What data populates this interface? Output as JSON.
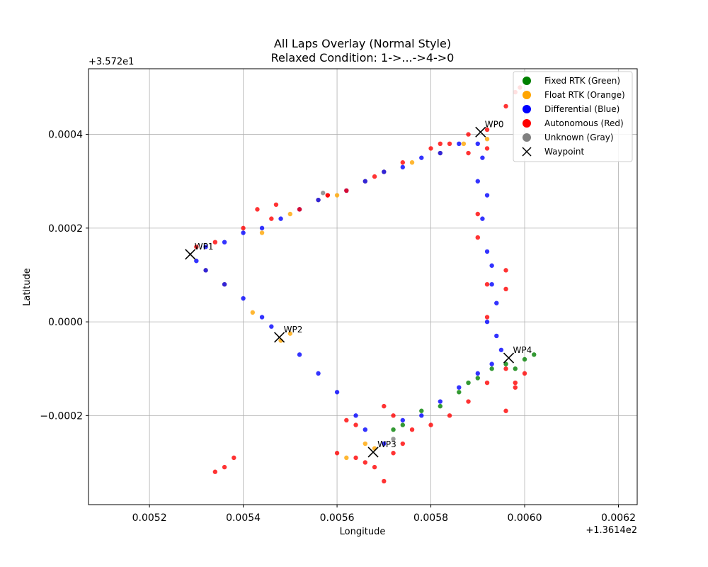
{
  "chart_data": {
    "type": "scatter",
    "title_line1": "All Laps Overlay (Normal Style)",
    "title_line2": "Relaxed Condition: 1->...->4->0",
    "xlabel": "Longitude",
    "ylabel": "Latitude",
    "x_offset_text": "+1.3614e2",
    "y_offset_text": "+3.572e1",
    "xlim": [
      0.00507,
      0.00624
    ],
    "ylim": [
      -0.00039,
      0.00054
    ],
    "x_ticks": [
      0.0052,
      0.0054,
      0.0056,
      0.0058,
      0.006,
      0.0062
    ],
    "x_tick_labels": [
      "0.0052",
      "0.0054",
      "0.0056",
      "0.0058",
      "0.0060",
      "0.0062"
    ],
    "y_ticks": [
      -0.0002,
      0.0,
      0.0002,
      0.0004
    ],
    "y_tick_labels": [
      "−0.0002",
      "0.0000",
      "0.0002",
      "0.0004"
    ],
    "grid": true,
    "legend_position": "upper right",
    "legend": [
      {
        "label": "Fixed RTK (Green)",
        "color": "#008000",
        "marker": "circle"
      },
      {
        "label": "Float RTK (Orange)",
        "color": "#FFA500",
        "marker": "circle"
      },
      {
        "label": "Differential (Blue)",
        "color": "#0000FF",
        "marker": "circle"
      },
      {
        "label": "Autonomous (Red)",
        "color": "#FF0000",
        "marker": "circle"
      },
      {
        "label": "Unknown (Gray)",
        "color": "#808080",
        "marker": "circle"
      },
      {
        "label": "Waypoint",
        "color": "#000000",
        "marker": "x"
      }
    ],
    "waypoints": [
      {
        "label": "WP0",
        "x": 0.005906,
        "y": 0.000405
      },
      {
        "label": "WP1",
        "x": 0.005287,
        "y": 0.000144
      },
      {
        "label": "WP2",
        "x": 0.005477,
        "y": -3.3e-05
      },
      {
        "label": "WP3",
        "x": 0.005677,
        "y": -0.000278
      },
      {
        "label": "WP4",
        "x": 0.005966,
        "y": -7.7e-05
      }
    ],
    "series": [
      {
        "name": "Fixed RTK (Green)",
        "color": "#008000",
        "points": [
          [
            0.00574,
            -0.00022
          ],
          [
            0.00578,
            -0.00019
          ],
          [
            0.00582,
            -0.00018
          ],
          [
            0.00586,
            -0.00015
          ],
          [
            0.0059,
            -0.00012
          ],
          [
            0.00593,
            -0.0001
          ],
          [
            0.00596,
            -9e-05
          ],
          [
            0.00598,
            -0.0001
          ],
          [
            0.006,
            -8e-05
          ],
          [
            0.00602,
            -7e-05
          ],
          [
            0.00572,
            -0.00023
          ],
          [
            0.00588,
            -0.00013
          ]
        ]
      },
      {
        "name": "Float RTK (Orange)",
        "color": "#FFA500",
        "points": [
          [
            0.00548,
            -4e-05
          ],
          [
            0.0055,
            -2.5e-05
          ],
          [
            0.00542,
            2e-05
          ],
          [
            0.00536,
            8e-05
          ],
          [
            0.00532,
            0.00011
          ],
          [
            0.00544,
            0.00019
          ],
          [
            0.0055,
            0.00023
          ],
          [
            0.00556,
            0.00026
          ],
          [
            0.0056,
            0.00027
          ],
          [
            0.00566,
            0.0003
          ],
          [
            0.0057,
            0.00032
          ],
          [
            0.00576,
            0.00034
          ],
          [
            0.00582,
            0.00036
          ],
          [
            0.00587,
            0.00038
          ],
          [
            0.00568,
            -0.00027
          ],
          [
            0.00562,
            -0.00029
          ],
          [
            0.00566,
            -0.00026
          ],
          [
            0.00592,
            0.00039
          ]
        ]
      },
      {
        "name": "Differential (Blue)",
        "color": "#0000FF",
        "points": [
          [
            0.0053,
            0.00013
          ],
          [
            0.00532,
            0.00011
          ],
          [
            0.00536,
            8e-05
          ],
          [
            0.0054,
            5e-05
          ],
          [
            0.00544,
            1e-05
          ],
          [
            0.00546,
            -1e-05
          ],
          [
            0.00552,
            -7e-05
          ],
          [
            0.00556,
            -0.00011
          ],
          [
            0.0056,
            -0.00015
          ],
          [
            0.00564,
            -0.0002
          ],
          [
            0.00566,
            -0.00023
          ],
          [
            0.0057,
            -0.00026
          ],
          [
            0.00574,
            -0.00021
          ],
          [
            0.00578,
            -0.0002
          ],
          [
            0.00582,
            -0.00017
          ],
          [
            0.00586,
            -0.00014
          ],
          [
            0.0059,
            -0.00011
          ],
          [
            0.00593,
            -9e-05
          ],
          [
            0.00592,
            0.0
          ],
          [
            0.00593,
            8e-05
          ],
          [
            0.00592,
            0.00015
          ],
          [
            0.00591,
            0.00022
          ],
          [
            0.0059,
            0.0003
          ],
          [
            0.0059,
            0.00038
          ],
          [
            0.00586,
            0.00038
          ],
          [
            0.00582,
            0.00036
          ],
          [
            0.00578,
            0.00035
          ],
          [
            0.00574,
            0.00033
          ],
          [
            0.0057,
            0.00032
          ],
          [
            0.00566,
            0.0003
          ],
          [
            0.00562,
            0.00028
          ],
          [
            0.00556,
            0.00026
          ],
          [
            0.00552,
            0.00024
          ],
          [
            0.00548,
            0.00022
          ],
          [
            0.00544,
            0.0002
          ],
          [
            0.0054,
            0.00019
          ],
          [
            0.00536,
            0.00017
          ],
          [
            0.00532,
            0.00016
          ],
          [
            0.00594,
            -3e-05
          ],
          [
            0.00595,
            -6e-05
          ],
          [
            0.00591,
            0.00035
          ],
          [
            0.00592,
            0.00027
          ],
          [
            0.00593,
            0.00012
          ],
          [
            0.00594,
            4e-05
          ]
        ]
      },
      {
        "name": "Autonomous (Red)",
        "color": "#FF0000",
        "points": [
          [
            0.00534,
            -0.00032
          ],
          [
            0.00536,
            -0.00031
          ],
          [
            0.00538,
            -0.00029
          ],
          [
            0.0053,
            0.00016
          ],
          [
            0.00534,
            0.00017
          ],
          [
            0.0054,
            0.0002
          ],
          [
            0.00546,
            0.00022
          ],
          [
            0.00552,
            0.00024
          ],
          [
            0.00558,
            0.00027
          ],
          [
            0.00562,
            0.00028
          ],
          [
            0.00568,
            0.00031
          ],
          [
            0.00574,
            0.00034
          ],
          [
            0.0058,
            0.00037
          ],
          [
            0.00584,
            0.00038
          ],
          [
            0.00588,
            0.0004
          ],
          [
            0.00592,
            0.00041
          ],
          [
            0.00596,
            0.00046
          ],
          [
            0.00598,
            0.00049
          ],
          [
            0.00599,
            0.0005
          ],
          [
            0.00592,
            0.00037
          ],
          [
            0.0059,
            0.00023
          ],
          [
            0.0059,
            0.00018
          ],
          [
            0.00592,
            8e-05
          ],
          [
            0.00596,
            0.00011
          ],
          [
            0.00596,
            7e-05
          ],
          [
            0.00592,
            1e-05
          ],
          [
            0.0056,
            -0.00028
          ],
          [
            0.00564,
            -0.00029
          ],
          [
            0.00566,
            -0.0003
          ],
          [
            0.0057,
            -0.00034
          ],
          [
            0.00568,
            -0.00031
          ],
          [
            0.0057,
            -0.00018
          ],
          [
            0.00572,
            -0.0002
          ],
          [
            0.00576,
            -0.00023
          ],
          [
            0.0058,
            -0.00022
          ],
          [
            0.00584,
            -0.0002
          ],
          [
            0.00588,
            -0.00017
          ],
          [
            0.00592,
            -0.00013
          ],
          [
            0.00596,
            -0.0001
          ],
          [
            0.006,
            -0.00011
          ],
          [
            0.00598,
            -0.00013
          ],
          [
            0.00598,
            -0.00014
          ],
          [
            0.00596,
            -0.00019
          ],
          [
            0.00562,
            -0.00021
          ],
          [
            0.00564,
            -0.00022
          ],
          [
            0.00543,
            0.00024
          ],
          [
            0.00547,
            0.00025
          ],
          [
            0.00558,
            0.00027
          ],
          [
            0.00582,
            0.00038
          ],
          [
            0.00588,
            0.00036
          ],
          [
            0.00572,
            -0.00028
          ],
          [
            0.00574,
            -0.00026
          ]
        ]
      },
      {
        "name": "Unknown (Gray)",
        "color": "#808080",
        "points": [
          [
            0.00557,
            0.000275
          ],
          [
            0.00572,
            -0.00025
          ]
        ]
      }
    ]
  }
}
